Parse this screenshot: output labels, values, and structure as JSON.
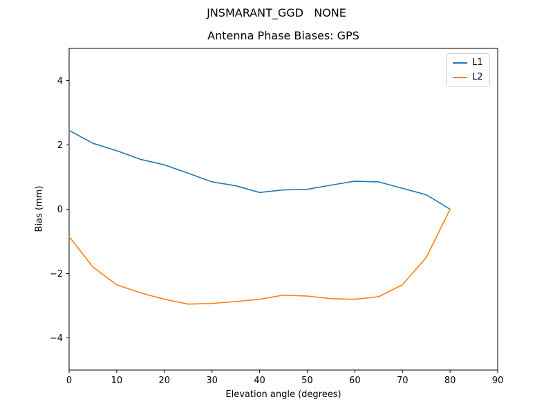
{
  "figure": {
    "suptitle": "JNSMARANT_GGD   NONE",
    "background": "#ffffff"
  },
  "chart_data": {
    "type": "line",
    "title": "Antenna Phase Biases: GPS",
    "xlabel": "Elevation angle (degrees)",
    "ylabel": "Bias (mm)",
    "xlim": [
      0,
      90
    ],
    "ylim": [
      -5,
      5
    ],
    "xticks": [
      0,
      10,
      20,
      30,
      40,
      50,
      60,
      70,
      80,
      90
    ],
    "yticks": [
      -4,
      -2,
      0,
      2,
      4
    ],
    "grid": false,
    "legend_position": "upper right",
    "axis_color": "#000000",
    "x": [
      0,
      5,
      10,
      15,
      20,
      25,
      30,
      35,
      40,
      45,
      50,
      55,
      60,
      65,
      70,
      75,
      80
    ],
    "series": [
      {
        "name": "L1",
        "color": "#1f77b4",
        "values": [
          2.45,
          2.05,
          1.82,
          1.55,
          1.38,
          1.12,
          0.85,
          0.73,
          0.52,
          0.6,
          0.62,
          0.75,
          0.87,
          0.85,
          0.65,
          0.45,
          0.0
        ]
      },
      {
        "name": "L2",
        "color": "#ff7f0e",
        "values": [
          -0.85,
          -1.8,
          -2.35,
          -2.6,
          -2.8,
          -2.95,
          -2.93,
          -2.87,
          -2.8,
          -2.67,
          -2.7,
          -2.78,
          -2.8,
          -2.72,
          -2.35,
          -1.5,
          0.0
        ]
      }
    ]
  }
}
